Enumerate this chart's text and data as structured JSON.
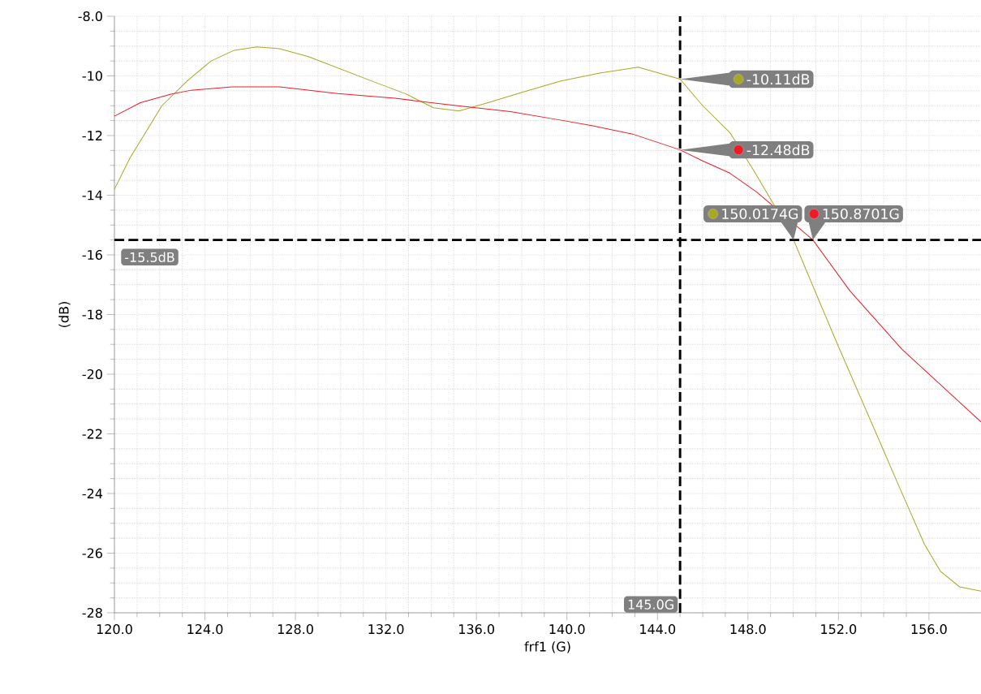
{
  "chart_data": {
    "type": "line",
    "xlabel": "frf1 (G)",
    "ylabel": "(dB)",
    "xlim": [
      120,
      158.3
    ],
    "ylim": [
      -28,
      -8
    ],
    "xticks": [
      {
        "value": 120,
        "label": "120.0"
      },
      {
        "value": 124,
        "label": "124.0"
      },
      {
        "value": 128,
        "label": "128.0"
      },
      {
        "value": 132,
        "label": "132.0"
      },
      {
        "value": 136,
        "label": "136.0"
      },
      {
        "value": 140,
        "label": "140.0"
      },
      {
        "value": 144,
        "label": "144.0"
      },
      {
        "value": 148,
        "label": "148.0"
      },
      {
        "value": 152,
        "label": "152.0"
      },
      {
        "value": 156,
        "label": "156.0"
      }
    ],
    "yticks": [
      {
        "value": -8,
        "label": "-8.0"
      },
      -10,
      -12,
      -14,
      -16,
      -18,
      -20,
      -22,
      -24,
      -26,
      -28
    ],
    "grid": true,
    "line_style": "solid",
    "marker": "none",
    "series": [
      {
        "color": "#a9a823",
        "x": [
          120,
          120.68,
          122.1,
          123.2,
          124.27,
          125.3,
          126.3,
          127.3,
          128.6,
          130,
          131.4,
          132.9,
          134.1,
          135.23,
          136.45,
          137.9,
          139.7,
          141.5,
          143.15,
          145,
          146.0,
          147.2,
          148.2,
          149.1,
          150.0174,
          150.68,
          151.9,
          153.76,
          154.7,
          155.8,
          156.5,
          157.35,
          158.3
        ],
        "values": [
          -13.8,
          -12.76,
          -11.0,
          -10.18,
          -9.5,
          -9.14,
          -9.03,
          -9.09,
          -9.36,
          -9.77,
          -10.18,
          -10.61,
          -11.07,
          -11.18,
          -10.91,
          -10.58,
          -10.18,
          -9.9,
          -9.71,
          -10.11,
          -11.0,
          -11.9,
          -13.1,
          -14.26,
          -15.5,
          -16.7,
          -18.9,
          -22.15,
          -23.8,
          -25.7,
          -26.6,
          -27.13,
          -27.27
        ]
      },
      {
        "color": "#ee1c25",
        "x": [
          120,
          121.15,
          122.5,
          123.4,
          125.2,
          127.3,
          129.86,
          132.4,
          135.0,
          137.5,
          139.7,
          141.1,
          142.9,
          145,
          146.0,
          147.2,
          148.4,
          150.8701,
          152.5,
          154.8,
          158.3
        ],
        "values": [
          -11.35,
          -10.9,
          -10.61,
          -10.48,
          -10.37,
          -10.37,
          -10.59,
          -10.75,
          -10.99,
          -11.2,
          -11.48,
          -11.67,
          -11.95,
          -12.48,
          -12.85,
          -13.26,
          -13.9,
          -15.5,
          -17.2,
          -19.16,
          -21.6
        ]
      }
    ],
    "ref_lines": [
      {
        "axis": "x",
        "value": 145,
        "label": "145.0G",
        "color": "#000000",
        "line_style": "dashed"
      },
      {
        "axis": "y",
        "value": -15.5,
        "label": "-15.5dB",
        "color": "#000000",
        "line_style": "dashed"
      }
    ],
    "annotations": [
      {
        "text": "-10.11dB",
        "x": 145,
        "y": -10.11
      },
      {
        "text": "-12.48dB",
        "x": 145,
        "y": -12.48
      },
      {
        "text": "150.0174G",
        "x": 150.0174,
        "y": -15.5
      },
      {
        "text": "150.8701G",
        "x": 150.8701,
        "y": -15.5
      }
    ]
  }
}
